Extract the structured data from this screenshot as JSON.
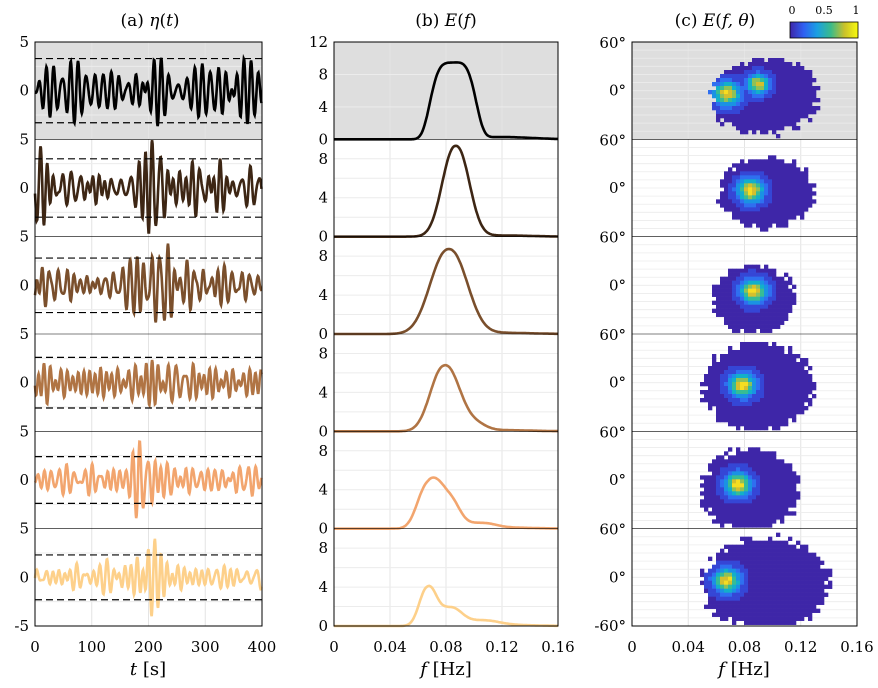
{
  "chart_data": [
    {
      "type": "line",
      "panel": "a",
      "title": "(a) η(t)",
      "xlabel": "t [s]",
      "xlim": [
        0,
        400
      ],
      "xticks": [
        0,
        100,
        200,
        300,
        400
      ],
      "x_tick_labels": [
        "0",
        "100",
        "200",
        "300",
        "400"
      ],
      "y_tick_labels_top": [
        "5",
        "0"
      ],
      "y_tick_labels_bottom": [
        "5",
        "0",
        "-5"
      ],
      "ylim_per_row": [
        -5,
        5
      ],
      "shaded_first_row": true,
      "threshold_lines": "dashed black at ±3.3, ±3.0, ±2.8, ±2.6, ±2.4, ±2.3 (rows 1-6)",
      "rows": [
        {
          "row": 1,
          "color": "#000000",
          "envelope_amplitude": 4.0
        },
        {
          "row": 2,
          "color": "#3d2614",
          "envelope_amplitude": 4.2
        },
        {
          "row": 3,
          "color": "#7a4f2c",
          "envelope_amplitude": 4.1
        },
        {
          "row": 4,
          "color": "#b07444",
          "envelope_amplitude": 3.6
        },
        {
          "row": 5,
          "color": "#f2a56e",
          "envelope_amplitude": 3.3
        },
        {
          "row": 6,
          "color": "#fdd08a",
          "envelope_amplitude": 3.0
        }
      ]
    },
    {
      "type": "line",
      "panel": "b",
      "title": "(b) E(f)",
      "xlabel": "f [Hz]",
      "xlim": [
        0,
        0.16
      ],
      "xticks": [
        0,
        0.04,
        0.08,
        0.12,
        0.16
      ],
      "x_tick_labels": [
        "0",
        "0.04",
        "0.08",
        "0.12",
        "0.16"
      ],
      "y_tick_labels_top": [
        "12",
        "8",
        "4",
        "0"
      ],
      "y_tick_labels_other": [
        "8",
        "4",
        "0"
      ],
      "ylim_top_row": [
        0,
        12
      ],
      "ylim_other_rows": [
        0,
        10
      ],
      "series": [
        {
          "color": "#000000",
          "peaks": [
            {
              "f": 0.085,
              "E": 9.4,
              "width": 0.015
            }
          ]
        },
        {
          "color": "#3d2614",
          "peaks": [
            {
              "f": 0.087,
              "E": 9.3,
              "width": 0.0095
            }
          ]
        },
        {
          "color": "#7a4f2c",
          "peaks": [
            {
              "f": 0.082,
              "E": 8.7,
              "width": 0.013
            }
          ]
        },
        {
          "color": "#b07444",
          "peaks": [
            {
              "f": 0.079,
              "E": 6.7,
              "width": 0.01
            },
            {
              "f": 0.098,
              "E": 0.9,
              "width": 0.009
            }
          ]
        },
        {
          "color": "#f2a56e",
          "peaks": [
            {
              "f": 0.067,
              "E": 4.3,
              "width": 0.0075
            },
            {
              "f": 0.081,
              "E": 3.3,
              "width": 0.008
            },
            {
              "f": 0.105,
              "E": 0.5,
              "width": 0.01
            }
          ]
        },
        {
          "color": "#fdd08a",
          "peaks": [
            {
              "f": 0.067,
              "E": 3.9,
              "width": 0.006
            },
            {
              "f": 0.083,
              "E": 1.8,
              "width": 0.008
            },
            {
              "f": 0.105,
              "E": 0.5,
              "width": 0.012
            }
          ]
        }
      ]
    },
    {
      "type": "heatmap",
      "panel": "c",
      "title": "(c) E(f,θ)",
      "xlabel": "f [Hz]",
      "xlim": [
        0,
        0.16
      ],
      "xticks": [
        0,
        0.04,
        0.08,
        0.12,
        0.16
      ],
      "x_tick_labels": [
        "0",
        "0.04",
        "0.08",
        "0.12",
        "0.16"
      ],
      "y_tick_labels": [
        "60°",
        "0°",
        "-60°"
      ],
      "colorbar": {
        "min": 0,
        "max": 1,
        "ticks": [
          "0",
          "0.5",
          "1"
        ],
        "colormap": "parula"
      },
      "blobs": [
        {
          "row": 1,
          "f_range": [
            0.058,
            0.128
          ],
          "theta_range": [
            -50,
            40
          ],
          "peak_f": 0.066,
          "peak_f2": 0.088
        },
        {
          "row": 2,
          "f_range": [
            0.064,
            0.125
          ],
          "theta_range": [
            -45,
            40
          ],
          "peak_f": 0.083
        },
        {
          "row": 3,
          "f_range": [
            0.058,
            0.112
          ],
          "theta_range": [
            -55,
            25
          ],
          "peak_f": 0.085
        },
        {
          "row": 4,
          "f_range": [
            0.052,
            0.125
          ],
          "theta_range": [
            -55,
            50
          ],
          "peak_f": 0.077
        },
        {
          "row": 5,
          "f_range": [
            0.051,
            0.115
          ],
          "theta_range": [
            -60,
            40
          ],
          "peak_f": 0.074
        },
        {
          "row": 6,
          "f_range": [
            0.053,
            0.135
          ],
          "theta_range": [
            -60,
            50
          ],
          "peak_f": 0.066
        }
      ]
    }
  ]
}
